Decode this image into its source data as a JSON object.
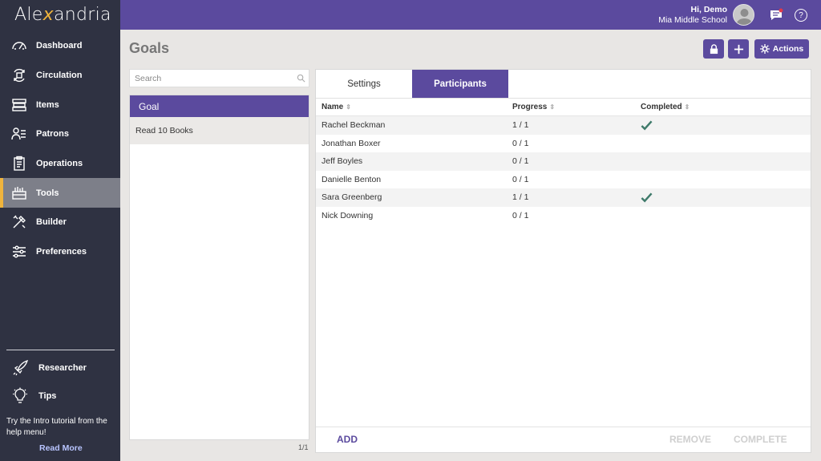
{
  "app": {
    "logo_prefix": "Ale",
    "logo_x": "x",
    "logo_suffix": "andria"
  },
  "header": {
    "greeting": "Hi, Demo",
    "school": "Mia Middle School"
  },
  "sidebar": {
    "items": [
      {
        "label": "Dashboard",
        "icon": "gauge-icon"
      },
      {
        "label": "Circulation",
        "icon": "circulation-icon"
      },
      {
        "label": "Items",
        "icon": "books-icon"
      },
      {
        "label": "Patrons",
        "icon": "patrons-icon"
      },
      {
        "label": "Operations",
        "icon": "clipboard-icon"
      },
      {
        "label": "Tools",
        "icon": "toolbox-icon",
        "active": true
      },
      {
        "label": "Builder",
        "icon": "builder-icon"
      },
      {
        "label": "Preferences",
        "icon": "sliders-icon"
      }
    ],
    "researcher": "Researcher",
    "tips": "Tips",
    "tip_text": "Try the Intro tutorial from the help menu!",
    "read_more": "Read More"
  },
  "page": {
    "title": "Goals",
    "actions_label": "Actions"
  },
  "search": {
    "placeholder": "Search",
    "value": ""
  },
  "goals_list": {
    "header": "Goal",
    "items": [
      "Read 10 Books"
    ],
    "pager": "1/1"
  },
  "tabs": [
    "Settings",
    "Participants"
  ],
  "table": {
    "columns": [
      "Name",
      "Progress",
      "Completed"
    ],
    "rows": [
      {
        "name": "Rachel Beckman",
        "progress": "1 / 1",
        "completed": true
      },
      {
        "name": "Jonathan Boxer",
        "progress": "0 / 1",
        "completed": false
      },
      {
        "name": "Jeff Boyles",
        "progress": "0 / 1",
        "completed": false
      },
      {
        "name": "Danielle Benton",
        "progress": "0 / 1",
        "completed": false
      },
      {
        "name": "Sara Greenberg",
        "progress": "1 / 1",
        "completed": true
      },
      {
        "name": "Nick Downing",
        "progress": "0 / 1",
        "completed": false
      }
    ]
  },
  "footer": {
    "add": "ADD",
    "remove": "REMOVE",
    "complete": "COMPLETE"
  },
  "colors": {
    "brand": "#5b4a9e",
    "sidebar": "#2f3242",
    "accent": "#f0b43c",
    "check": "#3e7a6a"
  }
}
